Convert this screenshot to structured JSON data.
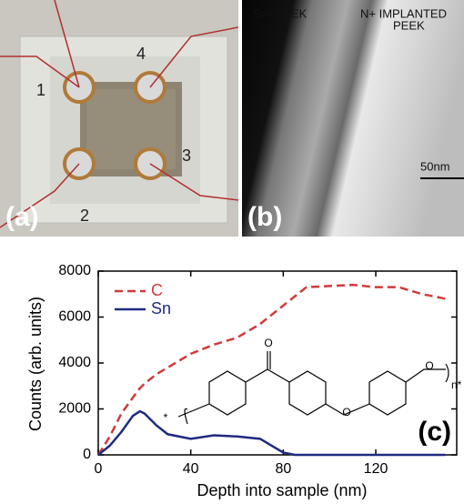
{
  "photos": {
    "panel_a": {
      "label": "(a)",
      "contacts": [
        "1",
        "2",
        "3",
        "4"
      ]
    },
    "panel_b": {
      "label": "(b)",
      "left_label": "Sn&PEEK",
      "right_label": [
        "N+ IMPLANTED",
        "PEEK"
      ],
      "scale_bar": "50nm"
    }
  },
  "chart_data": {
    "type": "line",
    "panel_label": "(c)",
    "x_label": "Depth into sample (nm)",
    "y_label": "Counts (arb. units)",
    "x": [
      0,
      5,
      10,
      15,
      18,
      20,
      25,
      30,
      40,
      50,
      60,
      70,
      75,
      80,
      85,
      90,
      100,
      110,
      120,
      130,
      140,
      150
    ],
    "series": [
      {
        "name": "C",
        "color": "#d03a3a",
        "dash": true,
        "values": [
          0,
          800,
          1800,
          2500,
          2900,
          3100,
          3500,
          3800,
          4400,
          4800,
          5100,
          5700,
          6100,
          6500,
          6900,
          7300,
          7350,
          7400,
          7300,
          7300,
          7000,
          6800
        ]
      },
      {
        "name": "Sn",
        "color": "#1f2a80",
        "dash": false,
        "values": [
          0,
          400,
          1000,
          1700,
          1900,
          1800,
          1300,
          900,
          700,
          850,
          800,
          700,
          400,
          100,
          0,
          0,
          0,
          0,
          0,
          0,
          0,
          0
        ]
      }
    ],
    "xlim": [
      0,
      155
    ],
    "ylim": [
      0,
      8000
    ],
    "xticks": [
      0,
      40,
      80,
      120
    ],
    "yticks": [
      0,
      2000,
      4000,
      6000,
      8000
    ],
    "legend": "upper left",
    "molecule_labels": [
      "O",
      "O",
      "O",
      "n",
      "*",
      "*"
    ]
  }
}
